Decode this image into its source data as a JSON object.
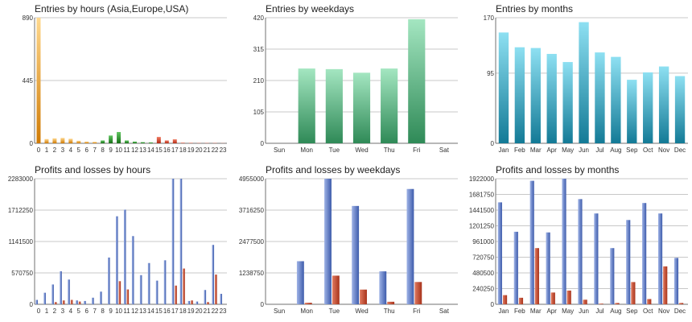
{
  "colors": {
    "grid": "#c8c8c8",
    "axis": "#707070",
    "profit_blue": [
      "#9fb3e6",
      "#3d5bab"
    ],
    "loss_red": [
      "#e07a60",
      "#a8331b"
    ],
    "hours_asia": [
      "#ffd98f",
      "#cf7a05"
    ],
    "hours_europe": [
      "#62c762",
      "#156e15"
    ],
    "hours_usa": [
      "#f07a62",
      "#b32b14"
    ],
    "weekdays": [
      "#a4e6c1",
      "#2f8a57"
    ],
    "months": [
      "#8ee0f2",
      "#137a96"
    ]
  },
  "chart_data": [
    {
      "id": "entries-hours",
      "type": "bar",
      "title": "Entries by hours (Asia,Europe,USA)",
      "categories": [
        "0",
        "1",
        "2",
        "3",
        "4",
        "5",
        "6",
        "7",
        "8",
        "9",
        "10",
        "11",
        "12",
        "13",
        "14",
        "15",
        "16",
        "17",
        "18",
        "19",
        "20",
        "21",
        "22",
        "23"
      ],
      "values": [
        890,
        30,
        35,
        38,
        32,
        18,
        12,
        10,
        20,
        55,
        80,
        20,
        12,
        8,
        6,
        45,
        20,
        28,
        4,
        3,
        2,
        2,
        2,
        1
      ],
      "regions": [
        "asia",
        "asia",
        "asia",
        "asia",
        "asia",
        "asia",
        "asia",
        "asia",
        "europe",
        "europe",
        "europe",
        "europe",
        "europe",
        "europe",
        "europe",
        "usa",
        "usa",
        "usa",
        "usa",
        "usa",
        "usa",
        "usa",
        "usa",
        "usa"
      ],
      "ylim": [
        0,
        890
      ],
      "yticks": [
        0,
        445,
        890
      ],
      "ytick_labels": [
        "0",
        "445",
        "890"
      ],
      "grid": true
    },
    {
      "id": "entries-weekdays",
      "type": "bar",
      "title": "Entries by weekdays",
      "categories": [
        "Sun",
        "Mon",
        "Tue",
        "Wed",
        "Thu",
        "Fri",
        "Sat"
      ],
      "values": [
        0,
        250,
        248,
        236,
        250,
        415,
        0
      ],
      "ylim": [
        0,
        420
      ],
      "yticks": [
        0,
        105,
        210,
        315,
        420
      ],
      "ytick_labels": [
        "0",
        "105",
        "210",
        "315",
        "420"
      ],
      "grid": true
    },
    {
      "id": "entries-months",
      "type": "bar",
      "title": "Entries by months",
      "categories": [
        "Jan",
        "Feb",
        "Mar",
        "Apr",
        "May",
        "Jun",
        "Jul",
        "Aug",
        "Sep",
        "Oct",
        "Nov",
        "Dec"
      ],
      "values": [
        150,
        130,
        129,
        121,
        110,
        164,
        123,
        117,
        86,
        96,
        104,
        91
      ],
      "ylim": [
        0,
        170
      ],
      "yticks": [
        0,
        95,
        170
      ],
      "ytick_labels": [
        "0",
        "95",
        "170"
      ],
      "grid": true
    },
    {
      "id": "profits-hours",
      "type": "bar",
      "title": "Profits and losses by hours",
      "categories": [
        "0",
        "1",
        "2",
        "3",
        "4",
        "5",
        "6",
        "7",
        "8",
        "9",
        "10",
        "11",
        "12",
        "13",
        "14",
        "15",
        "16",
        "17",
        "18",
        "19",
        "20",
        "21",
        "22",
        "23"
      ],
      "series": [
        {
          "name": "Profits",
          "values": [
            80000,
            210000,
            360000,
            600000,
            450000,
            70000,
            60000,
            120000,
            230000,
            850000,
            1600000,
            1720000,
            1240000,
            530000,
            750000,
            430000,
            800000,
            2283000,
            2283000,
            60000,
            50000,
            260000,
            1080000,
            190000
          ]
        },
        {
          "name": "Losses",
          "values": [
            0,
            0,
            40000,
            70000,
            80000,
            50000,
            0,
            0,
            0,
            0,
            420000,
            270000,
            0,
            0,
            0,
            0,
            0,
            340000,
            650000,
            70000,
            0,
            40000,
            540000,
            0
          ]
        }
      ],
      "ylim": [
        0,
        2283000
      ],
      "yticks": [
        0,
        570750,
        1141500,
        1712250,
        2283000
      ],
      "ytick_labels": [
        "0",
        "570750",
        "1141500",
        "1712250",
        "2283000"
      ],
      "grid": true
    },
    {
      "id": "profits-weekdays",
      "type": "bar",
      "title": "Profits and losses by weekdays",
      "categories": [
        "Sun",
        "Mon",
        "Tue",
        "Wed",
        "Thu",
        "Fri",
        "Sat"
      ],
      "series": [
        {
          "name": "Profits",
          "values": [
            0,
            1700000,
            4955000,
            3880000,
            1300000,
            4550000,
            0
          ]
        },
        {
          "name": "Losses",
          "values": [
            0,
            60000,
            1130000,
            580000,
            100000,
            880000,
            0
          ]
        }
      ],
      "ylim": [
        0,
        4955000
      ],
      "yticks": [
        0,
        1238750,
        2477500,
        3716250,
        4955000
      ],
      "ytick_labels": [
        "0",
        "1238750",
        "2477500",
        "3716250",
        "4955000"
      ],
      "grid": true
    },
    {
      "id": "profits-months",
      "type": "bar",
      "title": "Profits and losses by months",
      "categories": [
        "Jan",
        "Feb",
        "Mar",
        "Apr",
        "May",
        "Jun",
        "Jul",
        "Aug",
        "Sep",
        "Oct",
        "Nov",
        "Dec"
      ],
      "series": [
        {
          "name": "Profits",
          "values": [
            1560000,
            1110000,
            1890000,
            1100000,
            1922000,
            1610000,
            1390000,
            860000,
            1290000,
            1550000,
            1390000,
            710000
          ]
        },
        {
          "name": "Losses",
          "values": [
            140000,
            100000,
            860000,
            180000,
            210000,
            70000,
            10000,
            20000,
            340000,
            80000,
            580000,
            20000
          ]
        }
      ],
      "ylim": [
        0,
        1922000
      ],
      "yticks": [
        0,
        240250,
        480500,
        720750,
        961000,
        1201250,
        1441500,
        1681750,
        1922000
      ],
      "ytick_labels": [
        "0",
        "240250",
        "480500",
        "720750",
        "961000",
        "1201250",
        "1441500",
        "1681750",
        "1922000"
      ],
      "grid": true
    }
  ]
}
